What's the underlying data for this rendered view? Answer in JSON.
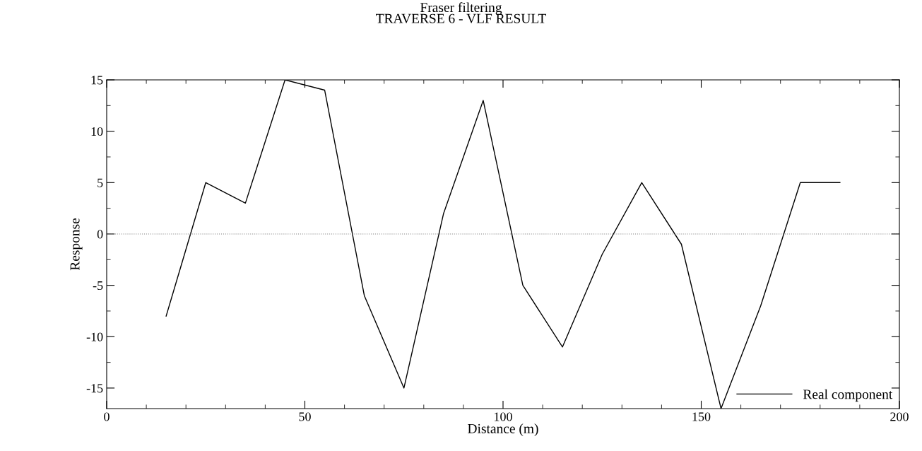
{
  "chart_data": {
    "type": "line",
    "title": "Fraser filtering\nTRAVERSE 6 - VLF RESULT",
    "xlabel": "Distance (m)",
    "ylabel": "Response",
    "x": [
      15,
      25,
      35,
      45,
      55,
      65,
      75,
      85,
      95,
      105,
      115,
      125,
      135,
      145,
      155,
      165,
      175,
      185
    ],
    "series": [
      {
        "name": "Real component",
        "color": "#000000",
        "values": [
          -8,
          5,
          3,
          15,
          14,
          -6,
          -15,
          2,
          13,
          -5,
          -11,
          -2,
          5,
          -1,
          -17,
          -7,
          5,
          5
        ]
      }
    ],
    "xlim": [
      0,
      200
    ],
    "xticks": [
      0,
      50,
      100,
      150,
      200
    ],
    "ylim": [
      -17,
      15
    ],
    "yticks": [
      -15,
      -10,
      -5,
      0,
      5,
      10,
      15
    ],
    "ref_lines": [
      {
        "axis": "y",
        "value": 0,
        "color": "#808080",
        "line_style": "dotted"
      }
    ],
    "legend": "bottom right",
    "grid": false,
    "marker": "none",
    "line_style": "solid"
  }
}
